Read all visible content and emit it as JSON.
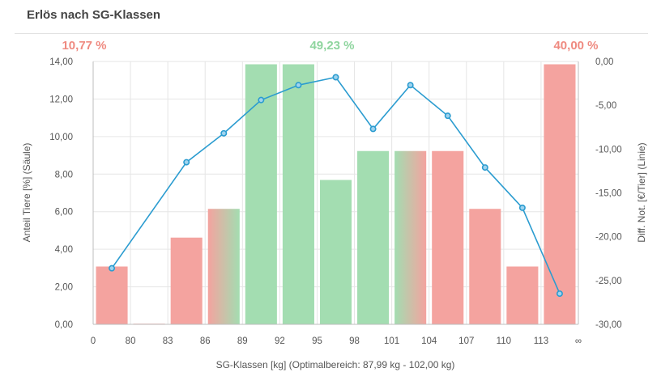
{
  "panel": {
    "title": "Erlös nach SG-Klassen"
  },
  "annotations": {
    "left_pct": "10,77 %",
    "middle_pct": "49,23 %",
    "right_pct": "40,00 %"
  },
  "colors": {
    "red": "#f4a39f",
    "green": "#a3ddb1",
    "line": "#2b9cd0",
    "red_text": "#ef8a80",
    "green_text": "#8fd59f"
  },
  "chart_data": {
    "type": "bar",
    "title": "Erlös nach SG-Klassen",
    "xlabel": "SG-Klassen [kg] (Optimalbereich: 87,99 kg - 102,00 kg)",
    "ylabel": "Anteil Tiere [%] (Säule)",
    "y2label": "Diff. Not. [€/Tier] (Linie)",
    "categories": [
      "0-80",
      "80-83",
      "83-86",
      "86-89",
      "89-92",
      "92-95",
      "95-98",
      "98-101",
      "101-104",
      "104-107",
      "107-110",
      "110-113",
      "113-∞"
    ],
    "x_tick_labels": [
      "0",
      "80",
      "83",
      "86",
      "89",
      "92",
      "95",
      "98",
      "101",
      "104",
      "107",
      "110",
      "113",
      "∞"
    ],
    "y_tick_labels": [
      "0,00",
      "2,00",
      "4,00",
      "6,00",
      "8,00",
      "10,00",
      "12,00",
      "14,00"
    ],
    "y2_tick_labels": [
      "0,00",
      "-5,00",
      "-10,00",
      "-15,00",
      "-20,00",
      "-25,00",
      "-30,00"
    ],
    "ylim": [
      0,
      14
    ],
    "y2lim": [
      -30,
      0
    ],
    "series": [
      {
        "kind": "bar",
        "values": [
          3.08,
          0.02,
          4.62,
          6.15,
          13.85,
          13.85,
          7.69,
          9.23,
          9.23,
          9.23,
          6.15,
          3.08,
          13.85
        ],
        "zones": [
          "red",
          "red",
          "red",
          "red-green",
          "green",
          "green",
          "green",
          "green",
          "green-red",
          "red",
          "red",
          "red",
          "red"
        ]
      },
      {
        "kind": "line",
        "axis": "right",
        "values": [
          -23.6,
          null,
          -11.5,
          -8.2,
          -4.4,
          -2.7,
          -1.8,
          -7.7,
          -2.7,
          -6.2,
          -12.1,
          -16.7,
          -26.5
        ]
      }
    ],
    "percent_labels": [
      "10,77 %",
      "49,23 %",
      "40,00 %"
    ],
    "grid": true,
    "legend": "none"
  }
}
